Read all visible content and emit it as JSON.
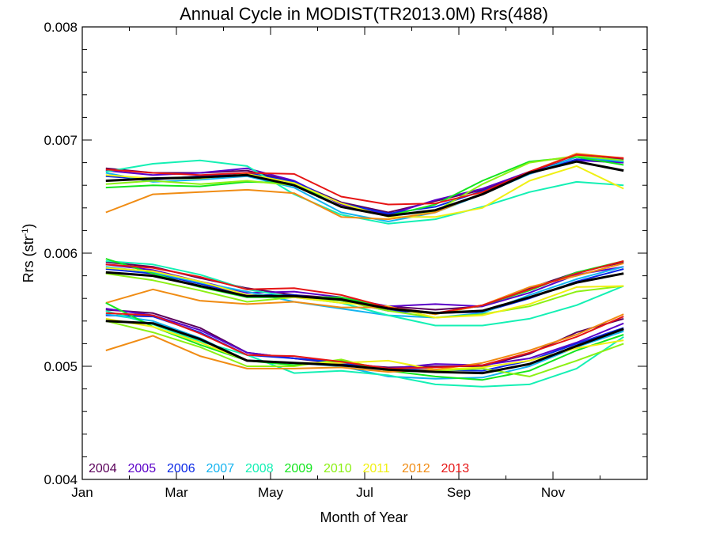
{
  "chart_data": {
    "type": "line",
    "title": "Annual Cycle in MODIST(TR2013.0M) Rrs(488)",
    "xlabel": "Month of Year",
    "ylabel_base": "Rrs (str",
    "ylabel_sup": "-1",
    "ylabel_close": ")",
    "xlim": [
      0,
      12
    ],
    "ylim": [
      0.004,
      0.008
    ],
    "x_tick_labels": [
      {
        "x": 0,
        "label": "Jan"
      },
      {
        "x": 2,
        "label": "Mar"
      },
      {
        "x": 4,
        "label": "May"
      },
      {
        "x": 6,
        "label": "Jul"
      },
      {
        "x": 8,
        "label": "Sep"
      },
      {
        "x": 10,
        "label": "Nov"
      }
    ],
    "y_tick_labels": [
      {
        "y": 0.004,
        "label": "0.004"
      },
      {
        "y": 0.005,
        "label": "0.005"
      },
      {
        "y": 0.006,
        "label": "0.006"
      },
      {
        "y": 0.007,
        "label": "0.007"
      },
      {
        "y": 0.008,
        "label": "0.008"
      }
    ],
    "grid": false,
    "legend_position": "bottom-left",
    "x": [
      0.5,
      1.5,
      2.5,
      3.5,
      4.5,
      5.5,
      6.5,
      7.5,
      8.5,
      9.5,
      10.5,
      11.5
    ],
    "colors": {
      "2004": "#5a005a",
      "2005": "#5a00c8",
      "2006": "#0a28e6",
      "2007": "#14b4f0",
      "2008": "#14f0b4",
      "2009": "#14e61e",
      "2010": "#8cf014",
      "2011": "#f0f014",
      "2012": "#f08c14",
      "2013": "#e61414",
      "mean": "#000000"
    },
    "series": [
      {
        "name": "2004",
        "group": "upper",
        "values": [
          0.00675,
          0.00671,
          0.00671,
          0.00673,
          0.00663,
          0.00645,
          0.00636,
          0.00646,
          0.00656,
          0.00671,
          0.00685,
          0.00683
        ]
      },
      {
        "name": "2005",
        "group": "upper",
        "values": [
          0.00673,
          0.00669,
          0.00671,
          0.00675,
          0.00664,
          0.00643,
          0.00634,
          0.00647,
          0.00657,
          0.00672,
          0.00682,
          0.0068
        ]
      },
      {
        "name": "2006",
        "group": "upper",
        "values": [
          0.00668,
          0.00665,
          0.00668,
          0.00671,
          0.00663,
          0.00644,
          0.00635,
          0.00641,
          0.00655,
          0.0067,
          0.00683,
          0.00681
        ]
      },
      {
        "name": "2007",
        "group": "upper",
        "values": [
          0.00671,
          0.00663,
          0.00665,
          0.00668,
          0.00658,
          0.00636,
          0.00628,
          0.00636,
          0.00652,
          0.0067,
          0.00685,
          0.00681
        ]
      },
      {
        "name": "2008",
        "group": "upper",
        "values": [
          0.00672,
          0.00679,
          0.00682,
          0.00677,
          0.00652,
          0.00634,
          0.00626,
          0.0063,
          0.00641,
          0.00654,
          0.00663,
          0.0066
        ]
      },
      {
        "name": "2009",
        "group": "upper",
        "values": [
          0.00658,
          0.0066,
          0.00659,
          0.00663,
          0.00662,
          0.00641,
          0.00633,
          0.00643,
          0.00664,
          0.00681,
          0.00685,
          0.00678
        ]
      },
      {
        "name": "2010",
        "group": "upper",
        "values": [
          0.00661,
          0.00664,
          0.00661,
          0.00664,
          0.0066,
          0.00641,
          0.00633,
          0.00637,
          0.00661,
          0.0068,
          0.00686,
          0.00682
        ]
      },
      {
        "name": "2011",
        "group": "upper",
        "values": [
          0.00669,
          0.00666,
          0.00666,
          0.0067,
          0.00662,
          0.00644,
          0.00632,
          0.00632,
          0.0064,
          0.00664,
          0.00677,
          0.00657
        ]
      },
      {
        "name": "2012",
        "group": "upper",
        "values": [
          0.00636,
          0.00652,
          0.00654,
          0.00656,
          0.00653,
          0.00632,
          0.0063,
          0.00636,
          0.00653,
          0.00672,
          0.00688,
          0.00684
        ]
      },
      {
        "name": "2013",
        "group": "upper",
        "values": [
          0.00674,
          0.00671,
          0.00669,
          0.00671,
          0.0067,
          0.0065,
          0.00643,
          0.00644,
          0.00654,
          0.00672,
          0.00687,
          0.00684
        ]
      },
      {
        "name": "mean",
        "group": "upper",
        "values": [
          0.00664,
          0.00666,
          0.00667,
          0.00669,
          0.0066,
          0.00641,
          0.00633,
          0.00638,
          0.00652,
          0.00671,
          0.00681,
          0.00673
        ]
      },
      {
        "name": "2004",
        "group": "middle",
        "values": [
          0.00592,
          0.00588,
          0.00578,
          0.00569,
          0.00563,
          0.0056,
          0.00553,
          0.0055,
          0.00553,
          0.00569,
          0.00583,
          0.00592
        ]
      },
      {
        "name": "2005",
        "group": "middle",
        "values": [
          0.0059,
          0.00585,
          0.00575,
          0.00565,
          0.00566,
          0.00561,
          0.00553,
          0.00555,
          0.00553,
          0.00565,
          0.00581,
          0.00588
        ]
      },
      {
        "name": "2006",
        "group": "middle",
        "values": [
          0.00586,
          0.00582,
          0.00573,
          0.00563,
          0.00563,
          0.00558,
          0.00549,
          0.00547,
          0.00548,
          0.0056,
          0.00575,
          0.00586
        ]
      },
      {
        "name": "2007",
        "group": "middle",
        "values": [
          0.00588,
          0.00583,
          0.00574,
          0.00566,
          0.00557,
          0.00551,
          0.00545,
          0.00543,
          0.00547,
          0.00563,
          0.00577,
          0.00588
        ]
      },
      {
        "name": "2008",
        "group": "middle",
        "values": [
          0.00593,
          0.0059,
          0.00581,
          0.00568,
          0.00561,
          0.00556,
          0.00545,
          0.00536,
          0.00536,
          0.00542,
          0.00554,
          0.00571
        ]
      },
      {
        "name": "2009",
        "group": "middle",
        "values": [
          0.00595,
          0.00582,
          0.0057,
          0.00561,
          0.00561,
          0.00561,
          0.00552,
          0.00546,
          0.00554,
          0.00567,
          0.00583,
          0.00593
        ]
      },
      {
        "name": "2010",
        "group": "middle",
        "values": [
          0.00582,
          0.00576,
          0.00567,
          0.00557,
          0.00561,
          0.00558,
          0.00549,
          0.00543,
          0.00546,
          0.00553,
          0.00566,
          0.00571
        ]
      },
      {
        "name": "2011",
        "group": "middle",
        "values": [
          0.00587,
          0.00584,
          0.00575,
          0.00563,
          0.00561,
          0.00556,
          0.00553,
          0.00543,
          0.00545,
          0.00555,
          0.0057,
          0.00571
        ]
      },
      {
        "name": "2012",
        "group": "middle",
        "values": [
          0.00556,
          0.00568,
          0.00558,
          0.00555,
          0.00557,
          0.00552,
          0.00552,
          0.00546,
          0.00554,
          0.0057,
          0.0058,
          0.00591
        ]
      },
      {
        "name": "2013",
        "group": "middle",
        "values": [
          0.0059,
          0.00587,
          0.00579,
          0.00568,
          0.00569,
          0.00563,
          0.00552,
          0.00547,
          0.00554,
          0.00568,
          0.00582,
          0.00593
        ]
      },
      {
        "name": "mean",
        "group": "middle",
        "values": [
          0.00583,
          0.0058,
          0.00571,
          0.00562,
          0.00562,
          0.00559,
          0.00551,
          0.00547,
          0.00549,
          0.00561,
          0.00574,
          0.00582
        ]
      },
      {
        "name": "2004",
        "group": "lower",
        "values": [
          0.0055,
          0.00547,
          0.00534,
          0.00512,
          0.00507,
          0.00502,
          0.00499,
          0.005,
          0.005,
          0.00511,
          0.0053,
          0.00542
        ]
      },
      {
        "name": "2005",
        "group": "lower",
        "values": [
          0.00551,
          0.00545,
          0.00532,
          0.00512,
          0.00507,
          0.00504,
          0.00498,
          0.00502,
          0.00501,
          0.00507,
          0.00521,
          0.00538
        ]
      },
      {
        "name": "2006",
        "group": "lower",
        "values": [
          0.00545,
          0.00544,
          0.0053,
          0.0051,
          0.00507,
          0.00503,
          0.00497,
          0.00497,
          0.00496,
          0.00505,
          0.0052,
          0.00534
        ]
      },
      {
        "name": "2007",
        "group": "lower",
        "values": [
          0.00546,
          0.0054,
          0.00525,
          0.00505,
          0.00503,
          0.005,
          0.00491,
          0.00489,
          0.0049,
          0.005,
          0.00517,
          0.00531
        ]
      },
      {
        "name": "2008",
        "group": "lower",
        "values": [
          0.00549,
          0.00537,
          0.00522,
          0.0051,
          0.00494,
          0.00496,
          0.00492,
          0.00484,
          0.00482,
          0.00484,
          0.00498,
          0.00526
        ]
      },
      {
        "name": "2009",
        "group": "lower",
        "values": [
          0.00556,
          0.00535,
          0.00519,
          0.00505,
          0.00501,
          0.00505,
          0.00496,
          0.00491,
          0.00488,
          0.00496,
          0.00514,
          0.00528
        ]
      },
      {
        "name": "2010",
        "group": "lower",
        "values": [
          0.0054,
          0.0053,
          0.00517,
          0.005,
          0.005,
          0.00506,
          0.00496,
          0.00496,
          0.00498,
          0.00491,
          0.00505,
          0.0052
        ]
      },
      {
        "name": "2011",
        "group": "lower",
        "values": [
          0.00542,
          0.00535,
          0.00521,
          0.00505,
          0.00503,
          0.00503,
          0.00505,
          0.00497,
          0.00499,
          0.00505,
          0.00516,
          0.00523
        ]
      },
      {
        "name": "2012",
        "group": "lower",
        "values": [
          0.00514,
          0.00527,
          0.00509,
          0.00498,
          0.00498,
          0.00499,
          0.00495,
          0.00497,
          0.00503,
          0.00514,
          0.00528,
          0.00546
        ]
      },
      {
        "name": "2013",
        "group": "lower",
        "values": [
          0.00547,
          0.00545,
          0.00529,
          0.0051,
          0.00509,
          0.00504,
          0.00498,
          0.00499,
          0.00501,
          0.00512,
          0.00526,
          0.00544
        ]
      },
      {
        "name": "mean",
        "group": "lower",
        "values": [
          0.0054,
          0.00538,
          0.00524,
          0.00505,
          0.00503,
          0.00501,
          0.00497,
          0.00495,
          0.00494,
          0.00502,
          0.00518,
          0.00533
        ]
      }
    ],
    "legend": [
      "2004",
      "2005",
      "2006",
      "2007",
      "2008",
      "2009",
      "2010",
      "2011",
      "2012",
      "2013"
    ]
  }
}
